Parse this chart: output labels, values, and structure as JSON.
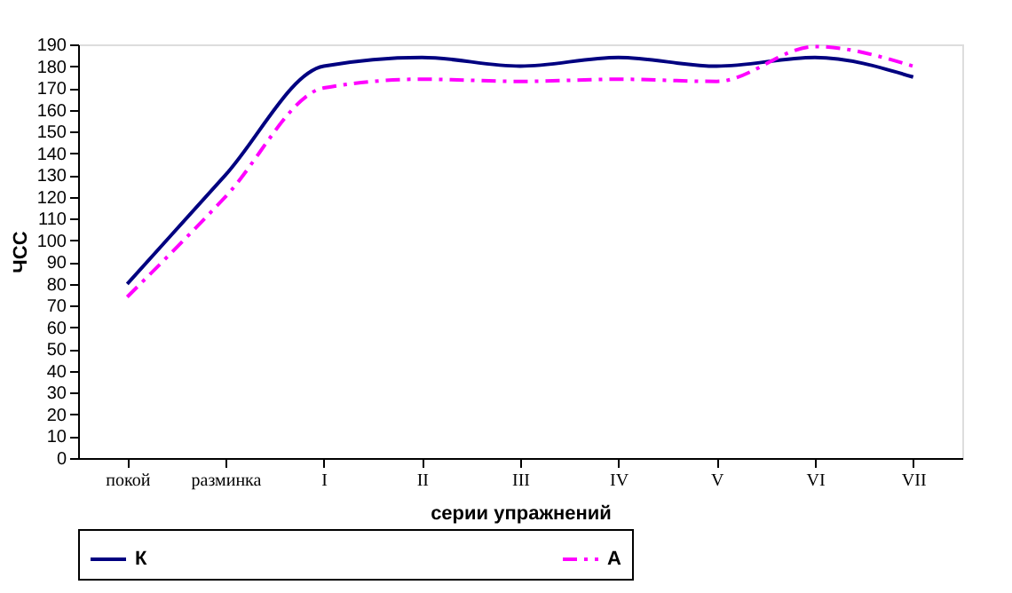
{
  "chart_data": {
    "type": "line",
    "xlabel": "серии упражнений",
    "ylabel": "ЧСС",
    "categories": [
      "покой",
      "разминка",
      "I",
      "II",
      "III",
      "IV",
      "V",
      "VI",
      "VII"
    ],
    "series": [
      {
        "name": "К",
        "color": "#000080",
        "line_style": "solid",
        "values": [
          80,
          130,
          180,
          184,
          180,
          184,
          180,
          184,
          175
        ]
      },
      {
        "name": "А",
        "color": "#ff00ff",
        "line_style": "dashed",
        "values": [
          74,
          120,
          170,
          174,
          173,
          174,
          173,
          189,
          180
        ]
      }
    ],
    "ylim": [
      0,
      190
    ],
    "yticks": [
      0,
      10,
      20,
      30,
      40,
      50,
      60,
      70,
      80,
      90,
      100,
      110,
      120,
      130,
      140,
      150,
      160,
      170,
      180,
      190
    ],
    "grid": false,
    "legend": "bottom",
    "marker": "none"
  }
}
